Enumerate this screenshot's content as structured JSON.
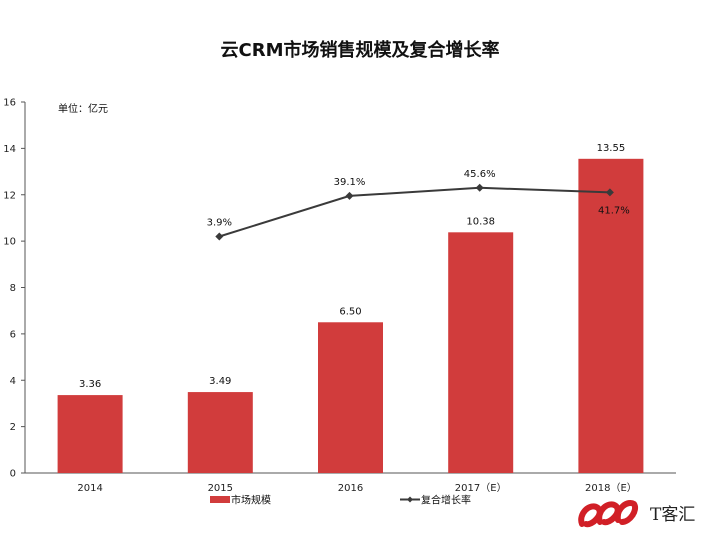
{
  "chart_data": {
    "type": "bar",
    "title": "云CRM市场销售规模及复合增长率",
    "unit_label": "单位：亿元",
    "categories": [
      "2014",
      "2015",
      "2016",
      "2017（E）",
      "2018（E）"
    ],
    "ylim": [
      0,
      16
    ],
    "yticks": [
      0,
      2,
      4,
      6,
      8,
      10,
      12,
      14,
      16
    ],
    "series": [
      {
        "name": "市场规模",
        "type": "bar",
        "color": "#d13c3c",
        "values": [
          3.36,
          3.49,
          6.5,
          10.38,
          13.55
        ],
        "labels": [
          "3.36",
          "3.49",
          "6.50",
          "10.38",
          "13.55"
        ]
      },
      {
        "name": "复合增长率",
        "type": "line",
        "color": "#3a3a3a",
        "plot_values": [
          null,
          10.2,
          11.95,
          12.3,
          12.1
        ],
        "labels": [
          null,
          "3.9%",
          "39.1%",
          "45.6%",
          "41.7%"
        ]
      }
    ],
    "legend_position": "bottom"
  },
  "logo": {
    "text": "T客汇"
  }
}
